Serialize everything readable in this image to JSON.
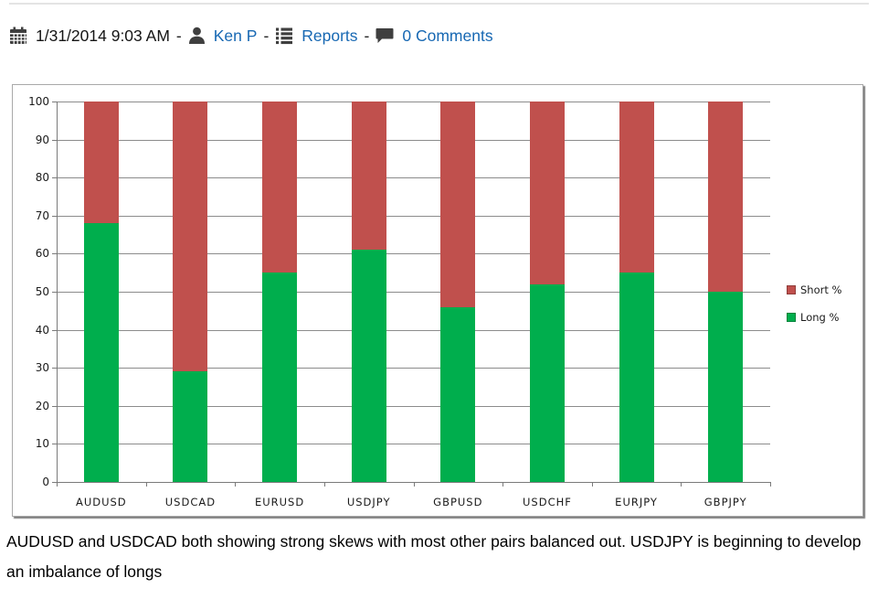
{
  "header": {
    "date": "1/31/2014 9:03 AM",
    "separator": "-",
    "author": "Ken P",
    "category": "Reports",
    "comments": "0 Comments",
    "icons": [
      "calendar-icon",
      "user-icon",
      "list-icon",
      "comment-bubble-icon"
    ],
    "link_color": "#1768b3",
    "icon_color": "#3f3f3f"
  },
  "chart_data": {
    "type": "bar",
    "stacked": true,
    "percent_stacked": true,
    "title": "",
    "xlabel": "",
    "ylabel": "",
    "categories": [
      "AUDUSD",
      "USDCAD",
      "EURUSD",
      "USDJPY",
      "GBPUSD",
      "USDCHF",
      "EURJPY",
      "GBPJPY"
    ],
    "series": [
      {
        "name": "Short %",
        "color": "#c0504d",
        "values": [
          32,
          71,
          45,
          39,
          54,
          48,
          45,
          50
        ]
      },
      {
        "name": "Long %",
        "color": "#00ae4d",
        "values": [
          68,
          29,
          55,
          61,
          46,
          52,
          55,
          50
        ]
      }
    ],
    "ylim": [
      0,
      100
    ],
    "ytick_step": 10,
    "grid": true,
    "gridline_color": "#8c8c8c",
    "legend_position": "right"
  },
  "caption": "AUDUSD and USDCAD both showing strong skews with most other pairs balanced out. USDJPY is beginning to develop an imbalance of longs"
}
